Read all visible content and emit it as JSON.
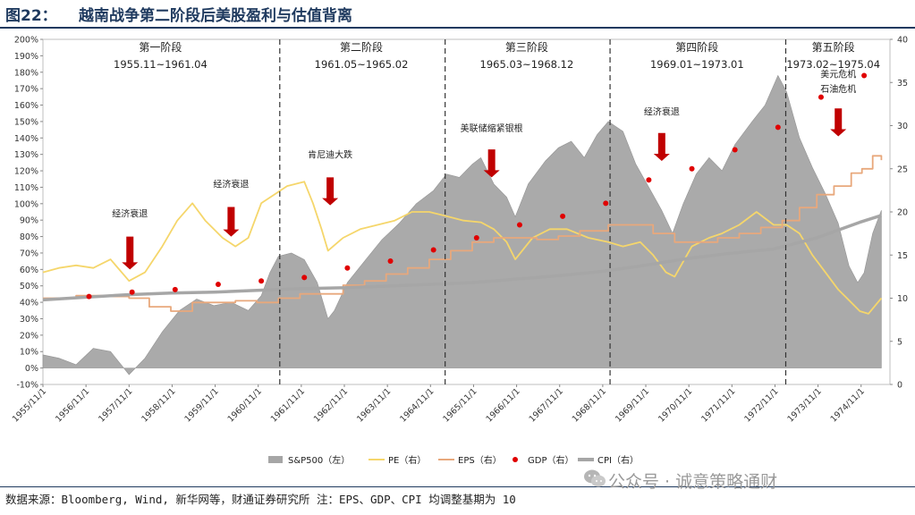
{
  "header": {
    "figure_number": "图22：",
    "title": "越南战争第二阶段后美股盈利与估值背离"
  },
  "footer": {
    "source": "数据来源：Bloomberg, Wind, 新华网等，财通证券研究所 注：EPS、GDP、CPI 均调整基期为 10",
    "watermark": "公众号 · 诚意策略通财"
  },
  "chart_data": {
    "type": "line",
    "left_axis": {
      "min": -10,
      "max": 200,
      "step": 10,
      "unit": "%",
      "tick_labels": [
        "-10%",
        "0%",
        "10%",
        "20%",
        "30%",
        "40%",
        "50%",
        "60%",
        "70%",
        "80%",
        "90%",
        "100%",
        "110%",
        "120%",
        "130%",
        "140%",
        "150%",
        "160%",
        "170%",
        "180%",
        "190%",
        "200%"
      ]
    },
    "right_axis": {
      "min": 0,
      "max": 40,
      "step": 5,
      "tick_labels": [
        "0",
        "5",
        "10",
        "15",
        "20",
        "25",
        "30",
        "35",
        "40"
      ]
    },
    "x_range": [
      1955.83,
      1975.5
    ],
    "x_tick_labels": [
      "1955/11/1",
      "1956/11/1",
      "1957/11/1",
      "1958/11/1",
      "1959/11/1",
      "1960/11/1",
      "1961/11/1",
      "1962/11/1",
      "1963/11/1",
      "1964/11/1",
      "1965/11/1",
      "1966/11/1",
      "1967/11/1",
      "1968/11/1",
      "1969/11/1",
      "1970/11/1",
      "1971/11/1",
      "1972/11/1",
      "1973/11/1",
      "1974/11/1"
    ],
    "x_tick_years": [
      1955.83,
      1956.83,
      1957.83,
      1958.83,
      1959.83,
      1960.83,
      1961.83,
      1962.83,
      1963.83,
      1964.83,
      1965.83,
      1966.83,
      1967.83,
      1968.83,
      1969.83,
      1970.83,
      1971.83,
      1972.83,
      1973.83,
      1974.83
    ],
    "phases": [
      {
        "name": "第一阶段",
        "range": "1955.11~1961.04",
        "start": 1955.83,
        "end": 1961.29
      },
      {
        "name": "第二阶段",
        "range": "1961.05~1965.02",
        "start": 1961.33,
        "end": 1965.12
      },
      {
        "name": "第三阶段",
        "range": "1965.03~1968.12",
        "start": 1965.17,
        "end": 1968.96
      },
      {
        "name": "第四阶段",
        "range": "1969.01~1973.01",
        "start": 1969.0,
        "end": 1973.04
      },
      {
        "name": "第五阶段",
        "range": "1973.02~1975.04",
        "start": 1973.08,
        "end": 1975.29
      }
    ],
    "phase_dividers": [
      1961.33,
      1965.17,
      1969.0,
      1973.08
    ],
    "annotations": [
      {
        "text": "经济衰退",
        "x": 1957.85,
        "label_y": 92,
        "arrow_top": 80,
        "arrow_bottom": 60
      },
      {
        "text": "经济衰退",
        "x": 1960.2,
        "label_y": 110,
        "arrow_top": 98,
        "arrow_bottom": 80
      },
      {
        "text": "肯尼迪大跌",
        "x": 1962.5,
        "label_y": 128,
        "arrow_top": 116,
        "arrow_bottom": 99
      },
      {
        "text": "美联储缩紧银根",
        "x": 1966.25,
        "label_y": 144,
        "arrow_top": 133,
        "arrow_bottom": 116
      },
      {
        "text": "经济衰退",
        "x": 1970.2,
        "label_y": 154,
        "arrow_top": 143,
        "arrow_bottom": 126
      },
      {
        "text": "美元危机",
        "x": 1974.3,
        "label_y": 177,
        "arrow_top": 0,
        "arrow_bottom": 0
      },
      {
        "text": "石油危机",
        "x": 1974.3,
        "label_y": 168,
        "arrow_top": 158,
        "arrow_bottom": 141
      }
    ],
    "series": [
      {
        "name": "S&P500（左）",
        "axis": "left",
        "kind": "area",
        "color": "#a6a6a6",
        "x": [
          1955.83,
          1956.2,
          1956.6,
          1957.0,
          1957.4,
          1957.83,
          1958.2,
          1958.6,
          1959.0,
          1959.4,
          1959.8,
          1960.2,
          1960.6,
          1960.9,
          1961.1,
          1961.3,
          1961.6,
          1961.9,
          1962.2,
          1962.45,
          1962.6,
          1962.9,
          1963.3,
          1963.7,
          1964.1,
          1964.5,
          1964.9,
          1965.2,
          1965.5,
          1965.8,
          1966.0,
          1966.3,
          1966.6,
          1966.8,
          1967.1,
          1967.5,
          1967.8,
          1968.1,
          1968.4,
          1968.7,
          1968.96,
          1969.3,
          1969.6,
          1969.9,
          1970.2,
          1970.45,
          1970.7,
          1971.0,
          1971.3,
          1971.6,
          1971.9,
          1972.3,
          1972.6,
          1972.9,
          1973.1,
          1973.4,
          1973.7,
          1974.0,
          1974.3,
          1974.55,
          1974.75,
          1974.9,
          1975.1,
          1975.3
        ],
        "values": [
          8,
          6,
          2,
          12,
          10,
          -4,
          6,
          22,
          35,
          42,
          38,
          40,
          35,
          44,
          58,
          68,
          70,
          66,
          52,
          30,
          35,
          52,
          65,
          78,
          88,
          100,
          108,
          118,
          116,
          124,
          128,
          112,
          104,
          92,
          112,
          126,
          134,
          138,
          128,
          142,
          150,
          144,
          124,
          110,
          96,
          82,
          100,
          118,
          128,
          120,
          136,
          150,
          160,
          178,
          168,
          140,
          122,
          106,
          88,
          62,
          52,
          58,
          82,
          96
        ]
      },
      {
        "name": "PE（右）",
        "axis": "right",
        "kind": "line",
        "color": "#f5d66b",
        "x": [
          1955.83,
          1956.2,
          1956.6,
          1957.0,
          1957.4,
          1957.83,
          1958.2,
          1958.6,
          1958.95,
          1959.3,
          1959.6,
          1960.0,
          1960.3,
          1960.6,
          1960.9,
          1961.2,
          1961.5,
          1961.9,
          1962.1,
          1962.3,
          1962.45,
          1962.8,
          1963.2,
          1963.6,
          1964.0,
          1964.4,
          1964.8,
          1965.2,
          1965.6,
          1966.0,
          1966.3,
          1966.6,
          1966.8,
          1967.2,
          1967.6,
          1968.0,
          1968.5,
          1968.96,
          1969.3,
          1969.7,
          1970.0,
          1970.3,
          1970.5,
          1970.9,
          1971.3,
          1971.6,
          1972.0,
          1972.4,
          1972.8,
          1973.1,
          1973.4,
          1973.7,
          1974.0,
          1974.3,
          1974.6,
          1974.8,
          1975.0,
          1975.3
        ],
        "values": [
          13,
          13.5,
          13.8,
          13.5,
          14.5,
          12,
          13,
          16,
          19,
          21,
          19,
          17,
          16,
          17,
          21,
          22,
          23,
          23.5,
          21,
          18,
          15.5,
          17,
          18,
          18.5,
          19,
          20,
          20,
          19.5,
          19,
          18.8,
          18,
          16.5,
          14.5,
          17,
          18,
          18,
          17,
          16.5,
          16,
          16.5,
          15,
          13,
          12.5,
          16,
          17,
          17.5,
          18.5,
          20,
          18.5,
          18.5,
          17.5,
          15,
          13,
          11,
          9.5,
          8.5,
          8.2,
          10
        ]
      },
      {
        "name": "EPS（右）",
        "axis": "right",
        "kind": "step",
        "color": "#e8a87c",
        "x": [
          1955.83,
          1956.6,
          1957.3,
          1957.83,
          1958.3,
          1958.8,
          1959.3,
          1959.8,
          1960.3,
          1960.8,
          1961.3,
          1961.8,
          1962.3,
          1962.8,
          1963.3,
          1963.8,
          1964.3,
          1964.8,
          1965.3,
          1965.8,
          1966.3,
          1966.8,
          1967.3,
          1967.8,
          1968.3,
          1968.96,
          1969.5,
          1970.0,
          1970.5,
          1971.0,
          1971.5,
          1972.0,
          1972.5,
          1973.0,
          1973.4,
          1973.8,
          1974.2,
          1974.6,
          1974.85,
          1975.1,
          1975.3
        ],
        "values": [
          10,
          10.3,
          10.2,
          10,
          9,
          8.5,
          9.5,
          9.5,
          9.7,
          9.5,
          10,
          10.5,
          10.5,
          11.5,
          12,
          12.8,
          13.5,
          14.5,
          15.5,
          16.5,
          17,
          17,
          16.8,
          17.2,
          17.8,
          18.5,
          18.5,
          17.5,
          16.5,
          16.5,
          17,
          17.5,
          18.2,
          19,
          20.5,
          22,
          23,
          24.5,
          25,
          26.5,
          26
        ]
      },
      {
        "name": "GDP（右）",
        "axis": "right",
        "kind": "scatter",
        "color": "#e00000",
        "x": [
          1956.9,
          1957.9,
          1958.9,
          1959.9,
          1960.9,
          1961.9,
          1962.9,
          1963.9,
          1964.9,
          1965.9,
          1966.9,
          1967.9,
          1968.9,
          1969.9,
          1970.9,
          1971.9,
          1972.9,
          1973.9,
          1974.9
        ],
        "values": [
          10.2,
          10.7,
          11.0,
          11.6,
          12.0,
          12.4,
          13.5,
          14.3,
          15.6,
          17.0,
          18.5,
          19.5,
          21.0,
          23.7,
          25.0,
          27.2,
          29.8,
          33.3,
          35.8
        ]
      },
      {
        "name": "CPI（右）",
        "axis": "right",
        "kind": "line",
        "color": "#a6a6a6",
        "x": [
          1955.83,
          1956.8,
          1957.8,
          1958.8,
          1959.8,
          1960.8,
          1961.8,
          1962.8,
          1963.8,
          1964.8,
          1965.8,
          1966.8,
          1967.8,
          1968.8,
          1969.8,
          1970.8,
          1971.8,
          1972.8,
          1973.8,
          1974.8,
          1975.3
        ],
        "values": [
          9.8,
          10.1,
          10.4,
          10.6,
          10.7,
          10.9,
          11.1,
          11.2,
          11.4,
          11.6,
          11.8,
          12.2,
          12.6,
          13.1,
          13.8,
          14.6,
          15.2,
          15.7,
          17.0,
          18.8,
          19.6
        ]
      }
    ]
  }
}
